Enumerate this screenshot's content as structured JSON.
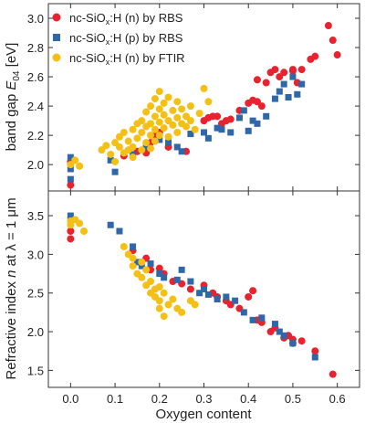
{
  "chart_data": [
    {
      "type": "scatter",
      "ylabel_main": "band gap ",
      "ylabel_var": "E",
      "ylabel_sub": "04",
      "ylabel_unit": " [eV]",
      "xlim": [
        -0.05,
        0.65
      ],
      "ylim": [
        1.82,
        3.1
      ],
      "yticks": [
        2.0,
        2.2,
        2.4,
        2.6,
        2.8,
        3.0
      ],
      "ytick_labels": [
        "2.0",
        "2.2",
        "2.4",
        "2.6",
        "2.8",
        "3.0"
      ],
      "legend_position": "top-left",
      "series": [
        {
          "name": "nc-SiOx:H (n) by RBS",
          "label_a": "nc-SiO",
          "label_sub": "x",
          "label_b": ":H (n) by RBS",
          "color": "#e8222e",
          "marker": "circle",
          "points": [
            [
              0.0,
              1.86
            ],
            [
              0.0,
              2.02
            ],
            [
              0.12,
              2.06
            ],
            [
              0.15,
              2.09
            ],
            [
              0.17,
              2.08
            ],
            [
              0.18,
              2.15
            ],
            [
              0.19,
              2.2
            ],
            [
              0.2,
              2.22
            ],
            [
              0.22,
              2.12
            ],
            [
              0.26,
              2.09
            ],
            [
              0.3,
              2.3
            ],
            [
              0.31,
              2.32
            ],
            [
              0.32,
              2.33
            ],
            [
              0.33,
              2.33
            ],
            [
              0.34,
              2.28
            ],
            [
              0.35,
              2.3
            ],
            [
              0.36,
              2.31
            ],
            [
              0.38,
              2.37
            ],
            [
              0.4,
              2.42
            ],
            [
              0.41,
              2.44
            ],
            [
              0.42,
              2.43
            ],
            [
              0.42,
              2.58
            ],
            [
              0.43,
              2.4
            ],
            [
              0.44,
              2.56
            ],
            [
              0.45,
              2.63
            ],
            [
              0.46,
              2.65
            ],
            [
              0.47,
              2.6
            ],
            [
              0.48,
              2.63
            ],
            [
              0.5,
              2.64
            ],
            [
              0.5,
              2.65
            ],
            [
              0.51,
              2.56
            ],
            [
              0.52,
              2.65
            ],
            [
              0.54,
              2.72
            ],
            [
              0.55,
              2.74
            ],
            [
              0.58,
              2.95
            ],
            [
              0.59,
              2.85
            ],
            [
              0.6,
              2.75
            ]
          ]
        },
        {
          "name": "nc-SiOx:H (p) by RBS",
          "label_a": "nc-SiO",
          "label_sub": "x",
          "label_b": ":H (p) by RBS",
          "color": "#2f67a8",
          "marker": "square",
          "points": [
            [
              0.0,
              2.05
            ],
            [
              0.0,
              1.97
            ],
            [
              0.0,
              1.9
            ],
            [
              0.09,
              2.03
            ],
            [
              0.1,
              1.95
            ],
            [
              0.14,
              2.07
            ],
            [
              0.17,
              2.12
            ],
            [
              0.2,
              2.17
            ],
            [
              0.22,
              2.15
            ],
            [
              0.24,
              2.12
            ],
            [
              0.25,
              2.09
            ],
            [
              0.27,
              2.21
            ],
            [
              0.3,
              2.22
            ],
            [
              0.31,
              2.18
            ],
            [
              0.33,
              2.25
            ],
            [
              0.34,
              2.24
            ],
            [
              0.36,
              2.22
            ],
            [
              0.38,
              2.32
            ],
            [
              0.39,
              2.37
            ],
            [
              0.4,
              2.23
            ],
            [
              0.41,
              2.3
            ],
            [
              0.42,
              2.28
            ],
            [
              0.44,
              2.33
            ],
            [
              0.46,
              2.45
            ],
            [
              0.47,
              2.5
            ],
            [
              0.48,
              2.55
            ],
            [
              0.49,
              2.46
            ],
            [
              0.5,
              2.6
            ],
            [
              0.51,
              2.48
            ],
            [
              0.52,
              2.55
            ]
          ]
        },
        {
          "name": "nc-SiOx:H (n) by FTIR",
          "label_a": "nc-SiO",
          "label_sub": "x",
          "label_b": ":H (n) by FTIR",
          "color": "#f5c016",
          "marker": "circle",
          "points": [
            [
              0.0,
              2.0
            ],
            [
              0.01,
              2.03
            ],
            [
              0.02,
              1.99
            ],
            [
              0.07,
              2.1
            ],
            [
              0.08,
              2.13
            ],
            [
              0.09,
              2.07
            ],
            [
              0.1,
              2.15
            ],
            [
              0.1,
              2.02
            ],
            [
              0.11,
              2.12
            ],
            [
              0.11,
              2.19
            ],
            [
              0.12,
              2.08
            ],
            [
              0.12,
              2.22
            ],
            [
              0.13,
              2.1
            ],
            [
              0.13,
              2.16
            ],
            [
              0.14,
              2.05
            ],
            [
              0.14,
              2.12
            ],
            [
              0.14,
              2.24
            ],
            [
              0.15,
              2.18
            ],
            [
              0.15,
              2.28
            ],
            [
              0.16,
              2.1
            ],
            [
              0.16,
              2.22
            ],
            [
              0.16,
              2.3
            ],
            [
              0.17,
              2.15
            ],
            [
              0.17,
              2.26
            ],
            [
              0.17,
              2.36
            ],
            [
              0.18,
              2.11
            ],
            [
              0.18,
              2.2
            ],
            [
              0.18,
              2.28
            ],
            [
              0.18,
              2.4
            ],
            [
              0.19,
              2.16
            ],
            [
              0.19,
              2.24
            ],
            [
              0.19,
              2.33
            ],
            [
              0.19,
              2.45
            ],
            [
              0.2,
              2.2
            ],
            [
              0.2,
              2.29
            ],
            [
              0.2,
              2.38
            ],
            [
              0.2,
              2.5
            ],
            [
              0.21,
              2.25
            ],
            [
              0.21,
              2.34
            ],
            [
              0.21,
              2.42
            ],
            [
              0.22,
              2.19
            ],
            [
              0.22,
              2.3
            ],
            [
              0.22,
              2.46
            ],
            [
              0.23,
              2.27
            ],
            [
              0.23,
              2.37
            ],
            [
              0.24,
              2.22
            ],
            [
              0.24,
              2.32
            ],
            [
              0.24,
              2.43
            ],
            [
              0.25,
              2.28
            ],
            [
              0.25,
              2.38
            ],
            [
              0.26,
              2.33
            ],
            [
              0.26,
              2.26
            ],
            [
              0.27,
              2.3
            ],
            [
              0.27,
              2.4
            ],
            [
              0.28,
              2.24
            ],
            [
              0.29,
              2.35
            ],
            [
              0.3,
              2.52
            ],
            [
              0.31,
              2.43
            ]
          ]
        }
      ]
    },
    {
      "type": "scatter",
      "xlabel": "Oxygen content",
      "ylabel_a": "Refractive index ",
      "ylabel_n": "n",
      "ylabel_b": " at λ = 1 μm",
      "xlim": [
        -0.05,
        0.65
      ],
      "ylim": [
        1.28,
        3.82
      ],
      "xticks": [
        0.0,
        0.1,
        0.2,
        0.3,
        0.4,
        0.5,
        0.6
      ],
      "xtick_labels": [
        "0.0",
        "0.1",
        "0.2",
        "0.3",
        "0.4",
        "0.5",
        "0.6"
      ],
      "yticks": [
        1.5,
        2.0,
        2.5,
        3.0,
        3.5
      ],
      "ytick_labels": [
        "1.5",
        "2.0",
        "2.5",
        "3.0",
        "3.5"
      ],
      "series": [
        {
          "name": "nc-SiOx:H (n) by RBS",
          "color": "#e8222e",
          "marker": "circle",
          "points": [
            [
              0.0,
              3.3
            ],
            [
              0.0,
              3.2
            ],
            [
              0.14,
              3.05
            ],
            [
              0.17,
              2.95
            ],
            [
              0.18,
              2.8
            ],
            [
              0.2,
              2.82
            ],
            [
              0.21,
              2.75
            ],
            [
              0.23,
              2.65
            ],
            [
              0.25,
              2.62
            ],
            [
              0.27,
              2.55
            ],
            [
              0.3,
              2.6
            ],
            [
              0.32,
              2.5
            ],
            [
              0.33,
              2.45
            ],
            [
              0.35,
              2.4
            ],
            [
              0.36,
              2.35
            ],
            [
              0.38,
              2.3
            ],
            [
              0.4,
              2.45
            ],
            [
              0.41,
              2.53
            ],
            [
              0.42,
              2.15
            ],
            [
              0.43,
              2.12
            ],
            [
              0.45,
              2.0
            ],
            [
              0.46,
              2.05
            ],
            [
              0.48,
              1.92
            ],
            [
              0.49,
              1.95
            ],
            [
              0.5,
              1.85
            ],
            [
              0.5,
              1.9
            ],
            [
              0.52,
              1.88
            ],
            [
              0.55,
              1.75
            ],
            [
              0.59,
              1.45
            ]
          ]
        },
        {
          "name": "nc-SiOx:H (p) by RBS",
          "color": "#2f67a8",
          "marker": "square",
          "points": [
            [
              0.0,
              3.5
            ],
            [
              0.0,
              3.45
            ],
            [
              0.09,
              3.38
            ],
            [
              0.11,
              3.3
            ],
            [
              0.14,
              3.1
            ],
            [
              0.15,
              2.9
            ],
            [
              0.16,
              2.85
            ],
            [
              0.18,
              2.88
            ],
            [
              0.2,
              2.75
            ],
            [
              0.21,
              2.7
            ],
            [
              0.24,
              2.67
            ],
            [
              0.25,
              2.8
            ],
            [
              0.27,
              2.65
            ],
            [
              0.29,
              2.5
            ],
            [
              0.3,
              2.55
            ],
            [
              0.31,
              2.48
            ],
            [
              0.33,
              2.42
            ],
            [
              0.35,
              2.45
            ],
            [
              0.37,
              2.4
            ],
            [
              0.39,
              2.25
            ],
            [
              0.41,
              2.15
            ],
            [
              0.43,
              2.18
            ],
            [
              0.46,
              2.1
            ],
            [
              0.47,
              2.0
            ],
            [
              0.48,
              1.95
            ],
            [
              0.5,
              1.85
            ],
            [
              0.55,
              1.67
            ]
          ]
        },
        {
          "name": "nc-SiOx:H (n) by FTIR",
          "color": "#f5c016",
          "marker": "circle",
          "points": [
            [
              0.0,
              3.43
            ],
            [
              0.0,
              3.38
            ],
            [
              0.01,
              3.45
            ],
            [
              0.02,
              3.4
            ],
            [
              0.03,
              3.3
            ],
            [
              0.12,
              3.1
            ],
            [
              0.13,
              3.0
            ],
            [
              0.14,
              2.95
            ],
            [
              0.14,
              2.85
            ],
            [
              0.15,
              2.75
            ],
            [
              0.16,
              2.9
            ],
            [
              0.16,
              2.7
            ],
            [
              0.17,
              2.8
            ],
            [
              0.17,
              2.6
            ],
            [
              0.18,
              2.65
            ],
            [
              0.18,
              2.5
            ],
            [
              0.19,
              2.55
            ],
            [
              0.19,
              2.45
            ],
            [
              0.2,
              2.4
            ],
            [
              0.2,
              2.3
            ],
            [
              0.21,
              2.5
            ],
            [
              0.21,
              2.2
            ],
            [
              0.22,
              2.35
            ],
            [
              0.23,
              2.42
            ],
            [
              0.24,
              2.3
            ],
            [
              0.25,
              2.25
            ],
            [
              0.27,
              2.4
            ],
            [
              0.28,
              2.35
            ],
            [
              0.2,
              2.58
            ]
          ]
        }
      ]
    }
  ]
}
